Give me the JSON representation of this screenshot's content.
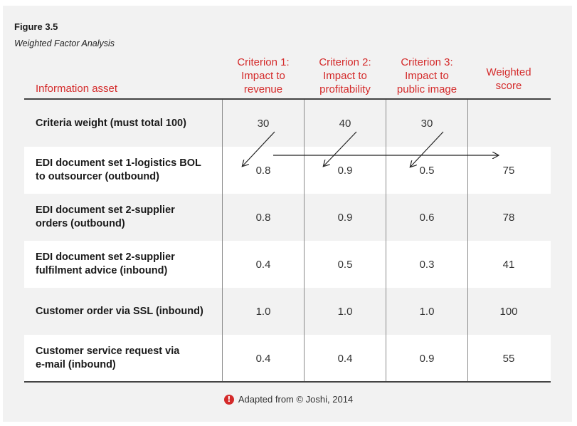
{
  "figure": {
    "label": "Figure 3.5",
    "caption": "Weighted Factor Analysis"
  },
  "headers": {
    "asset": "Information asset",
    "criterion_1": [
      "Criterion 1:",
      "Impact to",
      "revenue"
    ],
    "criterion_2": [
      "Criterion 2:",
      "Impact to",
      "profitability"
    ],
    "criterion_3": [
      "Criterion 3:",
      "Impact to",
      "public image"
    ],
    "weighted_score": [
      "Weighted",
      "score"
    ]
  },
  "rows": [
    {
      "asset": [
        "Criteria weight (must total 100)"
      ],
      "c1": "30",
      "c2": "40",
      "c3": "30",
      "score": ""
    },
    {
      "asset": [
        "EDI document set 1-logistics BOL",
        "to outsourcer (outbound)"
      ],
      "c1": "0.8",
      "c2": "0.9",
      "c3": "0.5",
      "score": "75"
    },
    {
      "asset": [
        "EDI document set 2-supplier",
        "orders (outbound)"
      ],
      "c1": "0.8",
      "c2": "0.9",
      "c3": "0.6",
      "score": "78"
    },
    {
      "asset": [
        "EDI document set 2-supplier",
        "fulfilment advice (inbound)"
      ],
      "c1": "0.4",
      "c2": "0.5",
      "c3": "0.3",
      "score": "41"
    },
    {
      "asset": [
        "Customer order via SSL (inbound)"
      ],
      "c1": "1.0",
      "c2": "1.0",
      "c3": "1.0",
      "score": "100"
    },
    {
      "asset": [
        "Customer service request via",
        "e-mail (inbound)"
      ],
      "c1": "0.4",
      "c2": "0.4",
      "c3": "0.9",
      "score": "55"
    }
  ],
  "footer": {
    "icon": "alert-icon",
    "text": "Adapted from © Joshi, 2014"
  },
  "colors": {
    "header_red": "#d42a2a",
    "stripe": "#f2f2f2",
    "rule": "#444444"
  }
}
